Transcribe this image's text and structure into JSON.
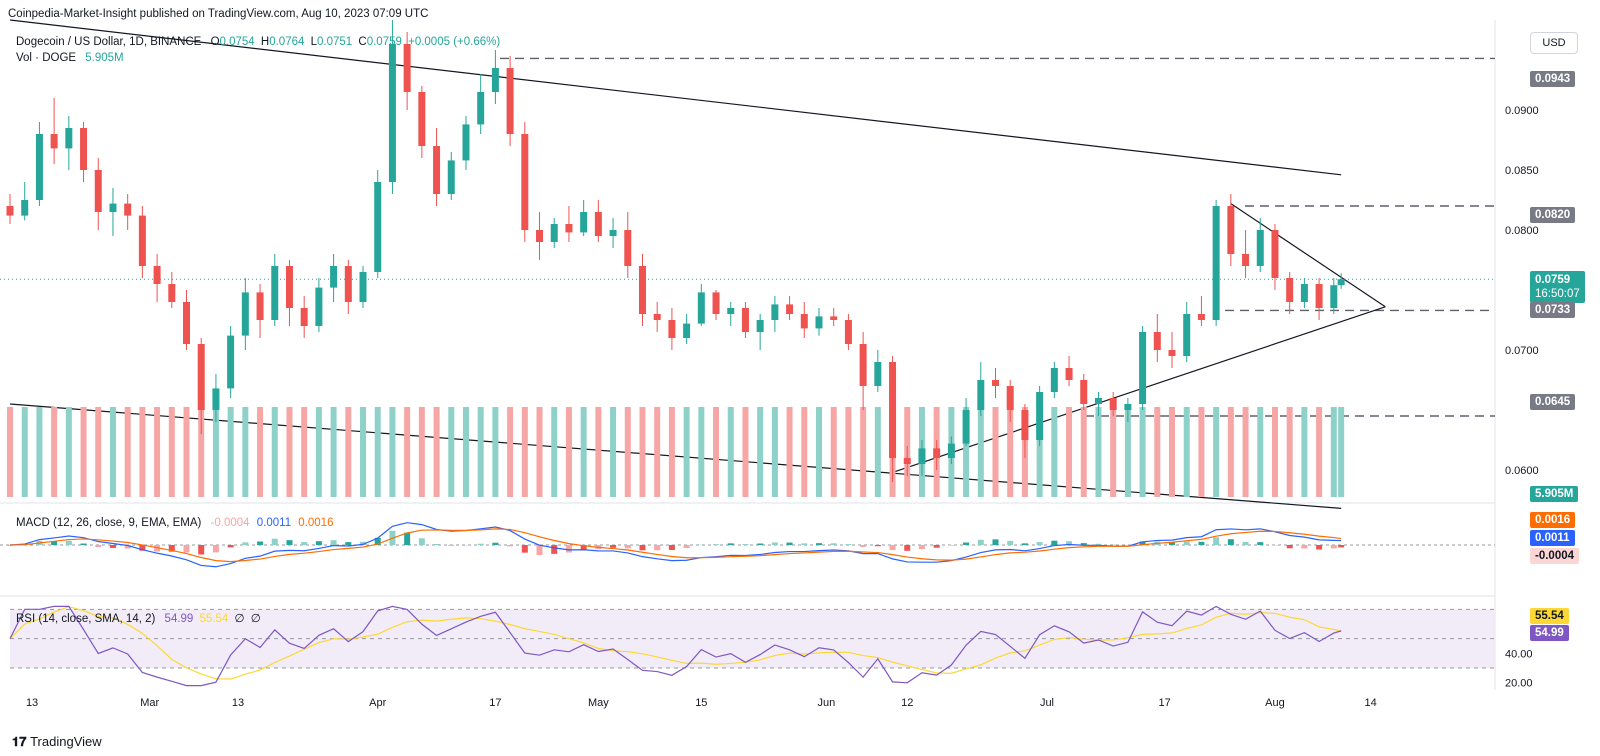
{
  "header": {
    "publisher": "Coinpedia-Market-Insight published on TradingView.com, Aug 10, 2023 07:09 UTC",
    "symbol": "Dogecoin / US Dollar, 1D, BINANCE",
    "o_label": "O",
    "o_value": "0.0754",
    "h_label": "H",
    "h_value": "0.0764",
    "l_label": "L",
    "l_value": "0.0751",
    "c_label": "C",
    "c_value": "0.0759",
    "change": "+0.0005 (+0.66%)",
    "vol_label": "Vol · DOGE",
    "vol_value": "5.905M",
    "currency_button": "USD"
  },
  "macd_legend": {
    "label": "MACD (12, 26, close, 9, EMA, EMA)",
    "hist": "-0.0004",
    "macd": "0.0011",
    "signal": "0.0016"
  },
  "rsi_legend": {
    "label": "RSI (14, close, SMA, 14, 2)",
    "rsi": "54.99",
    "sma": "55.54",
    "extra1": "∅",
    "extra2": "∅"
  },
  "price_tags": {
    "level_0943": "0.0943",
    "level_0820": "0.0820",
    "last_price": "0.0759",
    "countdown": "16:50:07",
    "level_0733": "0.0733",
    "level_0645": "0.0645",
    "volume": "5.905M",
    "macd_signal": "0.0016",
    "macd_line": "0.0011",
    "macd_hist": "-0.0004",
    "rsi_sma": "55.54",
    "rsi_value": "54.99"
  },
  "price_axis_ticks": [
    "0.0900",
    "0.0850",
    "0.0800",
    "0.0700",
    "0.0600"
  ],
  "rsi_axis_ticks": [
    "40.00",
    "20.00"
  ],
  "time_axis": [
    "13",
    "Mar",
    "13",
    "Apr",
    "17",
    "May",
    "15",
    "Jun",
    "12",
    "Jul",
    "17",
    "Aug",
    "14"
  ],
  "footer": {
    "brand": "TradingView"
  },
  "colors": {
    "up": "#26a69a",
    "down": "#ef5350",
    "macd": "#2962ff",
    "signal": "#ff6d00",
    "rsi": "#7e57c2",
    "rsi_sma": "#fdd835"
  },
  "chart_data": {
    "type": "candlestick",
    "symbol": "DOGEUSD",
    "interval": "1D",
    "x_range": [
      "2023-02-10",
      "2023-08-10"
    ],
    "price_range": [
      0.059,
      0.0975
    ],
    "ohlc": [
      [
        "2023-02-10",
        0.082,
        0.083,
        0.0805,
        0.0812
      ],
      [
        "2023-02-12",
        0.0812,
        0.084,
        0.0808,
        0.0825
      ],
      [
        "2023-02-14",
        0.0825,
        0.089,
        0.082,
        0.088
      ],
      [
        "2023-02-16",
        0.088,
        0.091,
        0.0855,
        0.0868
      ],
      [
        "2023-02-18",
        0.0868,
        0.0895,
        0.085,
        0.0885
      ],
      [
        "2023-02-20",
        0.0885,
        0.089,
        0.084,
        0.085
      ],
      [
        "2023-02-22",
        0.085,
        0.086,
        0.08,
        0.0815
      ],
      [
        "2023-02-24",
        0.0815,
        0.0835,
        0.0795,
        0.0822
      ],
      [
        "2023-02-26",
        0.0822,
        0.083,
        0.08,
        0.0812
      ],
      [
        "2023-02-28",
        0.0812,
        0.082,
        0.076,
        0.077
      ],
      [
        "2023-03-02",
        0.077,
        0.078,
        0.074,
        0.0755
      ],
      [
        "2023-03-04",
        0.0755,
        0.0765,
        0.0735,
        0.074
      ],
      [
        "2023-03-06",
        0.074,
        0.075,
        0.07,
        0.0705
      ],
      [
        "2023-03-08",
        0.0705,
        0.071,
        0.063,
        0.065
      ],
      [
        "2023-03-10",
        0.065,
        0.068,
        0.064,
        0.0668
      ],
      [
        "2023-03-12",
        0.0668,
        0.072,
        0.066,
        0.0712
      ],
      [
        "2023-03-14",
        0.0712,
        0.076,
        0.07,
        0.0748
      ],
      [
        "2023-03-16",
        0.0748,
        0.0755,
        0.071,
        0.0725
      ],
      [
        "2023-03-18",
        0.0725,
        0.078,
        0.072,
        0.077
      ],
      [
        "2023-03-20",
        0.077,
        0.0775,
        0.072,
        0.0735
      ],
      [
        "2023-03-22",
        0.0735,
        0.0745,
        0.071,
        0.072
      ],
      [
        "2023-03-24",
        0.072,
        0.076,
        0.0715,
        0.0752
      ],
      [
        "2023-03-26",
        0.0752,
        0.078,
        0.074,
        0.077
      ],
      [
        "2023-03-28",
        0.077,
        0.0775,
        0.073,
        0.074
      ],
      [
        "2023-03-30",
        0.074,
        0.077,
        0.0735,
        0.0765
      ],
      [
        "2023-04-01",
        0.0765,
        0.085,
        0.076,
        0.084
      ],
      [
        "2023-04-03",
        0.084,
        0.0975,
        0.083,
        0.0955
      ],
      [
        "2023-04-05",
        0.0955,
        0.0965,
        0.09,
        0.0915
      ],
      [
        "2023-04-07",
        0.0915,
        0.092,
        0.086,
        0.087
      ],
      [
        "2023-04-09",
        0.087,
        0.0885,
        0.082,
        0.083
      ],
      [
        "2023-04-11",
        0.083,
        0.0865,
        0.0825,
        0.0858
      ],
      [
        "2023-04-13",
        0.0858,
        0.0895,
        0.085,
        0.0888
      ],
      [
        "2023-04-15",
        0.0888,
        0.093,
        0.088,
        0.0915
      ],
      [
        "2023-04-17",
        0.0915,
        0.095,
        0.0905,
        0.0935
      ],
      [
        "2023-04-19",
        0.0935,
        0.0945,
        0.087,
        0.088
      ],
      [
        "2023-04-21",
        0.088,
        0.089,
        0.079,
        0.08
      ],
      [
        "2023-04-23",
        0.08,
        0.0815,
        0.0775,
        0.079
      ],
      [
        "2023-04-25",
        0.079,
        0.081,
        0.0785,
        0.0805
      ],
      [
        "2023-04-27",
        0.0805,
        0.082,
        0.079,
        0.0798
      ],
      [
        "2023-04-29",
        0.0798,
        0.0825,
        0.0795,
        0.0815
      ],
      [
        "2023-05-01",
        0.0815,
        0.0825,
        0.079,
        0.0795
      ],
      [
        "2023-05-03",
        0.0795,
        0.081,
        0.0785,
        0.08
      ],
      [
        "2023-05-05",
        0.08,
        0.0815,
        0.076,
        0.077
      ],
      [
        "2023-05-07",
        0.077,
        0.078,
        0.072,
        0.073
      ],
      [
        "2023-05-09",
        0.073,
        0.074,
        0.0715,
        0.0725
      ],
      [
        "2023-05-11",
        0.0725,
        0.0735,
        0.07,
        0.071
      ],
      [
        "2023-05-13",
        0.071,
        0.073,
        0.0705,
        0.0722
      ],
      [
        "2023-05-15",
        0.0722,
        0.0755,
        0.072,
        0.0748
      ],
      [
        "2023-05-17",
        0.0748,
        0.075,
        0.0725,
        0.073
      ],
      [
        "2023-05-19",
        0.073,
        0.074,
        0.072,
        0.0735
      ],
      [
        "2023-05-21",
        0.0735,
        0.074,
        0.071,
        0.0715
      ],
      [
        "2023-05-23",
        0.0715,
        0.073,
        0.07,
        0.0725
      ],
      [
        "2023-05-25",
        0.0725,
        0.0745,
        0.0715,
        0.0738
      ],
      [
        "2023-05-27",
        0.0738,
        0.0745,
        0.0725,
        0.073
      ],
      [
        "2023-05-29",
        0.073,
        0.074,
        0.071,
        0.0718
      ],
      [
        "2023-05-31",
        0.0718,
        0.0735,
        0.0712,
        0.0728
      ],
      [
        "2023-06-02",
        0.0728,
        0.0735,
        0.072,
        0.0725
      ],
      [
        "2023-06-04",
        0.0725,
        0.073,
        0.07,
        0.0705
      ],
      [
        "2023-06-06",
        0.0705,
        0.0715,
        0.065,
        0.067
      ],
      [
        "2023-06-08",
        0.067,
        0.07,
        0.0665,
        0.069
      ],
      [
        "2023-06-10",
        0.069,
        0.0695,
        0.059,
        0.061
      ],
      [
        "2023-06-12",
        0.061,
        0.062,
        0.0595,
        0.0605
      ],
      [
        "2023-06-14",
        0.0605,
        0.0625,
        0.0595,
        0.0618
      ],
      [
        "2023-06-16",
        0.0618,
        0.0625,
        0.06,
        0.061
      ],
      [
        "2023-06-18",
        0.061,
        0.0628,
        0.0605,
        0.0622
      ],
      [
        "2023-06-20",
        0.0622,
        0.066,
        0.062,
        0.065
      ],
      [
        "2023-06-22",
        0.065,
        0.069,
        0.0645,
        0.0675
      ],
      [
        "2023-06-24",
        0.0675,
        0.0685,
        0.066,
        0.067
      ],
      [
        "2023-06-26",
        0.067,
        0.0675,
        0.064,
        0.065
      ],
      [
        "2023-06-28",
        0.065,
        0.0655,
        0.061,
        0.0625
      ],
      [
        "2023-06-30",
        0.0625,
        0.067,
        0.062,
        0.0665
      ],
      [
        "2023-07-02",
        0.0665,
        0.069,
        0.066,
        0.0685
      ],
      [
        "2023-07-04",
        0.0685,
        0.0695,
        0.067,
        0.0675
      ],
      [
        "2023-07-06",
        0.0675,
        0.068,
        0.065,
        0.0655
      ],
      [
        "2023-07-08",
        0.0655,
        0.0665,
        0.0645,
        0.066
      ],
      [
        "2023-07-10",
        0.066,
        0.0665,
        0.0645,
        0.065
      ],
      [
        "2023-07-12",
        0.065,
        0.066,
        0.064,
        0.0655
      ],
      [
        "2023-07-14",
        0.0655,
        0.072,
        0.065,
        0.0715
      ],
      [
        "2023-07-16",
        0.0715,
        0.073,
        0.069,
        0.07
      ],
      [
        "2023-07-18",
        0.07,
        0.0715,
        0.0685,
        0.0695
      ],
      [
        "2023-07-20",
        0.0695,
        0.074,
        0.069,
        0.073
      ],
      [
        "2023-07-22",
        0.073,
        0.0745,
        0.072,
        0.0725
      ],
      [
        "2023-07-24",
        0.0725,
        0.0825,
        0.072,
        0.082
      ],
      [
        "2023-07-26",
        0.082,
        0.083,
        0.077,
        0.078
      ],
      [
        "2023-07-28",
        0.078,
        0.08,
        0.076,
        0.077
      ],
      [
        "2023-07-30",
        0.077,
        0.081,
        0.0765,
        0.08
      ],
      [
        "2023-08-01",
        0.08,
        0.0805,
        0.075,
        0.076
      ],
      [
        "2023-08-03",
        0.076,
        0.0765,
        0.073,
        0.074
      ],
      [
        "2023-08-05",
        0.074,
        0.076,
        0.0735,
        0.0755
      ],
      [
        "2023-08-07",
        0.0755,
        0.076,
        0.0725,
        0.0735
      ],
      [
        "2023-08-09",
        0.0735,
        0.076,
        0.073,
        0.0754
      ],
      [
        "2023-08-10",
        0.0754,
        0.0764,
        0.0751,
        0.0759
      ]
    ],
    "horizontal_levels": [
      0.0943,
      0.082,
      0.0733,
      0.0645
    ],
    "trendlines": [
      {
        "from": [
          "2023-02-10",
          0.0975
        ],
        "to": [
          "2023-08-10",
          0.0846
        ]
      },
      {
        "from": [
          "2023-02-10",
          0.0655
        ],
        "to": [
          "2023-08-10",
          0.0568
        ]
      },
      {
        "from": [
          "2023-06-10",
          0.0598
        ],
        "to": [
          "2023-08-16",
          0.0736
        ]
      },
      {
        "from": [
          "2023-07-26",
          0.0822
        ],
        "to": [
          "2023-08-16",
          0.0736
        ]
      }
    ],
    "rsi_levels": [
      70,
      50,
      30
    ],
    "rsi_axis_range": [
      15,
      75
    ]
  }
}
